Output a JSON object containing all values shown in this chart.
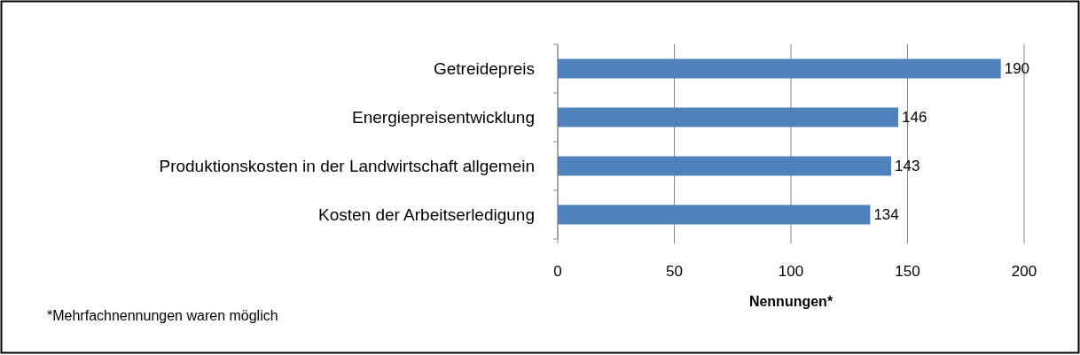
{
  "chart_data": {
    "type": "bar",
    "orientation": "horizontal",
    "categories": [
      "Getreidepreis",
      "Energiepreisentwicklung",
      "Produktionskosten in der Landwirtschaft allgemein",
      "Kosten der Arbeitserledigung"
    ],
    "values": [
      190,
      146,
      143,
      134
    ],
    "color": "#4f81bd",
    "xlim": [
      0,
      200
    ],
    "xticks": [
      0,
      50,
      100,
      150,
      200
    ],
    "xlabel": "Nennungen*",
    "grid": "x",
    "data_labels": true,
    "annotations": [
      "*Mehrfachnennungen waren möglich"
    ]
  }
}
